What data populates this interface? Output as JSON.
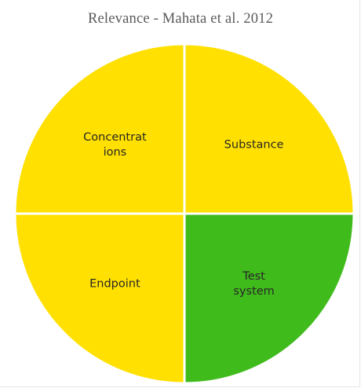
{
  "chart_data": {
    "type": "pie",
    "title": "Relevance - Mahata et al. 2012",
    "start_angle_deg": 90,
    "direction": "clockwise",
    "slices": [
      {
        "label_lines": [
          "Substance"
        ],
        "value": 25,
        "color": "#FFE000"
      },
      {
        "label_lines": [
          "Test",
          "system"
        ],
        "value": 25,
        "color": "#40BB1C"
      },
      {
        "label_lines": [
          "Endpoint"
        ],
        "value": 25,
        "color": "#FFE000"
      },
      {
        "label_lines": [
          "Concentrat",
          "ions"
        ],
        "value": 25,
        "color": "#FFE000"
      }
    ],
    "separator_color": "#ffffff",
    "legend": "none"
  }
}
